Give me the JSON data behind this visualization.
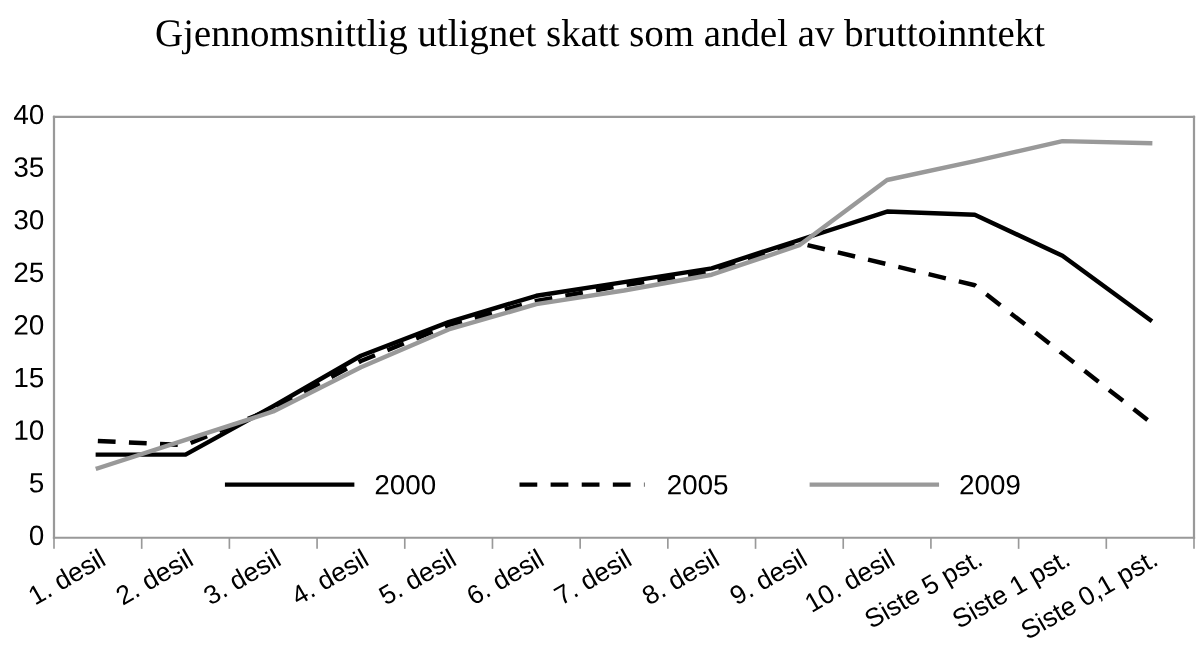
{
  "chart_data": {
    "type": "line",
    "title": "Gjennomsnittlig utlignet skatt som andel av bruttoinntekt",
    "categories": [
      "1. desil",
      "2. desil",
      "3. desil",
      "4. desil",
      "5. desil",
      "6. desil",
      "7. desil",
      "8. desil",
      "9. desil",
      "10. desil",
      "Siste 5 pst.",
      "Siste 1 pst.",
      "Siste 0,1 pst."
    ],
    "series": [
      {
        "name": "2000",
        "color": "#000000",
        "line_style": "solid",
        "values": [
          7.9,
          7.9,
          12.5,
          17.3,
          20.5,
          23.0,
          24.3,
          25.6,
          28.3,
          31.0,
          30.7,
          26.8,
          20.7
        ]
      },
      {
        "name": "2005",
        "color": "#000000",
        "line_style": "dashed",
        "values": [
          9.2,
          8.8,
          12.3,
          16.8,
          20.2,
          22.5,
          24.0,
          25.3,
          28.0,
          26.0,
          24.0,
          17.5,
          11.0
        ]
      },
      {
        "name": "2009",
        "color": "#999999",
        "line_style": "solid",
        "values": [
          6.6,
          9.3,
          12.0,
          16.2,
          19.8,
          22.2,
          23.5,
          25.0,
          27.8,
          34.0,
          35.8,
          37.7,
          37.5
        ]
      }
    ],
    "ylim": [
      0,
      40
    ],
    "yticks": [
      0,
      5,
      10,
      15,
      20,
      25,
      30,
      35,
      40
    ],
    "grid": false,
    "legend": "bottom"
  }
}
